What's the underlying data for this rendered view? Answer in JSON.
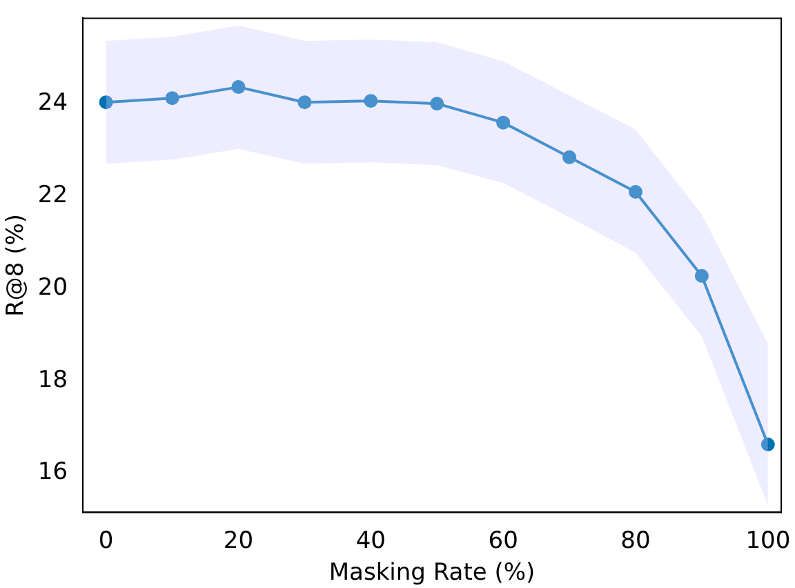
{
  "chart_data": {
    "type": "line",
    "xlabel": "Masking Rate (%)",
    "ylabel": "R@8 (%)",
    "x": [
      0,
      10,
      20,
      30,
      40,
      50,
      60,
      70,
      80,
      90,
      100
    ],
    "series": [
      {
        "color": "#0072b2",
        "values": [
          24.03,
          24.12,
          24.36,
          24.03,
          24.06,
          24.0,
          23.59,
          22.84,
          22.09,
          20.27,
          16.62
        ],
        "lower": [
          22.7,
          22.79,
          23.02,
          22.7,
          22.73,
          22.67,
          22.28,
          21.54,
          20.77,
          18.96,
          15.3
        ],
        "upper": [
          25.36,
          25.45,
          25.69,
          25.36,
          25.39,
          25.33,
          24.92,
          24.18,
          23.44,
          21.6,
          18.8
        ]
      }
    ],
    "xlim": [
      -3.5,
      102
    ],
    "ylim": [
      15.15,
      25.85
    ],
    "xticks": [
      0,
      20,
      40,
      60,
      80,
      100
    ],
    "yticks": [
      16,
      18,
      20,
      22,
      24
    ],
    "grid": false,
    "legend": false,
    "marker": "circle",
    "line_style": "solid"
  }
}
